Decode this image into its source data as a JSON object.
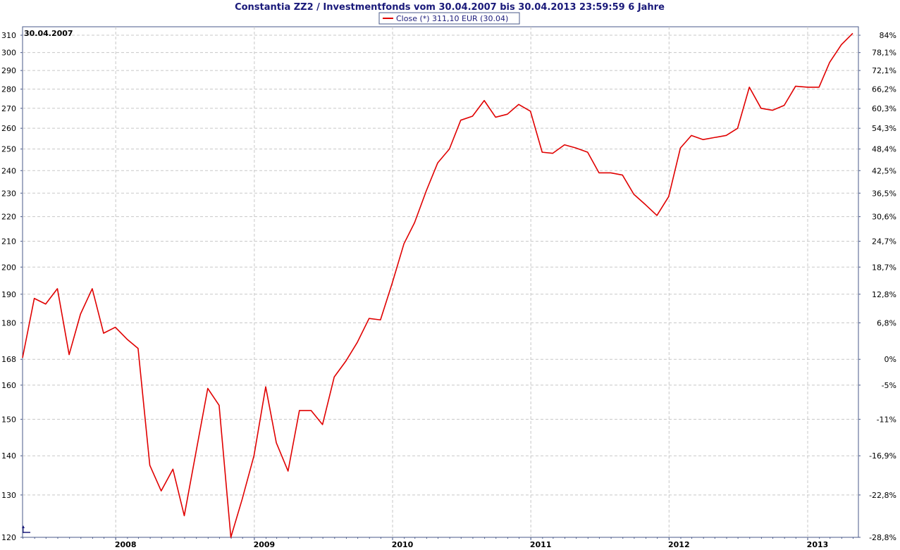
{
  "chart_data": {
    "type": "line",
    "title": "Constantia ZZ2 / Investmentfonds vom 30.04.2007 bis 30.04.2013 23:59:59 6 Jahre",
    "start_label": "30.04.2007",
    "legend": {
      "label": "Close (*) 311,10 EUR (30.04)",
      "placement": "top-center"
    },
    "x_axis": {
      "type": "date",
      "range": [
        "2007-04-30",
        "2013-05-15"
      ],
      "year_labels": [
        {
          "label": "2008",
          "date": "2008-01-01"
        },
        {
          "label": "2009",
          "date": "2009-01-01"
        },
        {
          "label": "2010",
          "date": "2010-01-01"
        },
        {
          "label": "2011",
          "date": "2011-01-01"
        },
        {
          "label": "2012",
          "date": "2012-01-01"
        },
        {
          "label": "2013",
          "date": "2013-01-01"
        }
      ]
    },
    "y_axis_left": {
      "scale": "log",
      "range": [
        120,
        315
      ],
      "ticks": [
        {
          "value": 310,
          "label": "310"
        },
        {
          "value": 300,
          "label": "300"
        },
        {
          "value": 290,
          "label": "290"
        },
        {
          "value": 280,
          "label": "280"
        },
        {
          "value": 270,
          "label": "270"
        },
        {
          "value": 260,
          "label": "260"
        },
        {
          "value": 250,
          "label": "250"
        },
        {
          "value": 240,
          "label": "240"
        },
        {
          "value": 230,
          "label": "230"
        },
        {
          "value": 220,
          "label": "220"
        },
        {
          "value": 210,
          "label": "210"
        },
        {
          "value": 200,
          "label": "200"
        },
        {
          "value": 190,
          "label": "190"
        },
        {
          "value": 180,
          "label": "180"
        },
        {
          "value": 168,
          "label": "168"
        },
        {
          "value": 160,
          "label": "160"
        },
        {
          "value": 150,
          "label": "150"
        },
        {
          "value": 140,
          "label": "140"
        },
        {
          "value": 130,
          "label": "130"
        },
        {
          "value": 120,
          "label": "120"
        }
      ]
    },
    "y_axis_right": {
      "ticks": [
        {
          "value": 310,
          "label": "84%"
        },
        {
          "value": 300,
          "label": "78,1%"
        },
        {
          "value": 290,
          "label": "72,1%"
        },
        {
          "value": 280,
          "label": "66,2%"
        },
        {
          "value": 270,
          "label": "60,3%"
        },
        {
          "value": 260,
          "label": "54,3%"
        },
        {
          "value": 250,
          "label": "48,4%"
        },
        {
          "value": 240,
          "label": "42,5%"
        },
        {
          "value": 230,
          "label": "36,5%"
        },
        {
          "value": 220,
          "label": "30,6%"
        },
        {
          "value": 210,
          "label": "24,7%"
        },
        {
          "value": 200,
          "label": "18,7%"
        },
        {
          "value": 190,
          "label": "12,8%"
        },
        {
          "value": 180,
          "label": "6,8%"
        },
        {
          "value": 168,
          "label": "0%"
        },
        {
          "value": 160,
          "label": "-5%"
        },
        {
          "value": 150,
          "label": "-11%"
        },
        {
          "value": 140,
          "label": "-16,9%"
        },
        {
          "value": 130,
          "label": "-22,8%"
        },
        {
          "value": 120,
          "label": "-28,8%"
        }
      ]
    },
    "grid": true,
    "colors": {
      "line": "#e00000",
      "title": "#1a1a7a",
      "axis": "#4a5a8a",
      "grid": "#c8c8c8"
    },
    "series": [
      {
        "values": [
          {
            "x": "2007-04-30",
            "y": 168.5
          },
          {
            "x": "2007-05-31",
            "y": 188.5
          },
          {
            "x": "2007-06-30",
            "y": 186.5
          },
          {
            "x": "2007-07-31",
            "y": 192.0
          },
          {
            "x": "2007-08-31",
            "y": 169.5
          },
          {
            "x": "2007-09-30",
            "y": 183.0
          },
          {
            "x": "2007-10-31",
            "y": 192.0
          },
          {
            "x": "2007-11-30",
            "y": 176.5
          },
          {
            "x": "2007-12-31",
            "y": 178.5
          },
          {
            "x": "2008-01-31",
            "y": 174.5
          },
          {
            "x": "2008-02-29",
            "y": 171.5
          },
          {
            "x": "2008-03-31",
            "y": 137.5
          },
          {
            "x": "2008-04-30",
            "y": 131.0
          },
          {
            "x": "2008-05-31",
            "y": 136.5
          },
          {
            "x": "2008-06-30",
            "y": 125.0
          },
          {
            "x": "2008-07-31",
            "y": 141.0
          },
          {
            "x": "2008-08-31",
            "y": 159.0
          },
          {
            "x": "2008-09-30",
            "y": 154.0
          },
          {
            "x": "2008-10-31",
            "y": 120.0
          },
          {
            "x": "2008-11-30",
            "y": 129.0
          },
          {
            "x": "2008-12-31",
            "y": 140.0
          },
          {
            "x": "2009-01-31",
            "y": 159.5
          },
          {
            "x": "2009-02-28",
            "y": 143.5
          },
          {
            "x": "2009-03-31",
            "y": 136.0
          },
          {
            "x": "2009-04-30",
            "y": 152.5
          },
          {
            "x": "2009-05-31",
            "y": 152.5
          },
          {
            "x": "2009-06-30",
            "y": 148.5
          },
          {
            "x": "2009-07-31",
            "y": 162.5
          },
          {
            "x": "2009-08-31",
            "y": 167.5
          },
          {
            "x": "2009-09-30",
            "y": 173.5
          },
          {
            "x": "2009-10-31",
            "y": 181.5
          },
          {
            "x": "2009-11-30",
            "y": 181.0
          },
          {
            "x": "2009-12-31",
            "y": 194.0
          },
          {
            "x": "2010-01-31",
            "y": 209.0
          },
          {
            "x": "2010-02-28",
            "y": 217.5
          },
          {
            "x": "2010-03-31",
            "y": 231.0
          },
          {
            "x": "2010-04-30",
            "y": 243.5
          },
          {
            "x": "2010-05-31",
            "y": 250.0
          },
          {
            "x": "2010-06-30",
            "y": 264.0
          },
          {
            "x": "2010-07-31",
            "y": 266.0
          },
          {
            "x": "2010-08-31",
            "y": 274.0
          },
          {
            "x": "2010-09-30",
            "y": 265.5
          },
          {
            "x": "2010-10-31",
            "y": 267.0
          },
          {
            "x": "2010-11-30",
            "y": 272.0
          },
          {
            "x": "2010-12-31",
            "y": 268.5
          },
          {
            "x": "2011-01-31",
            "y": 248.5
          },
          {
            "x": "2011-02-28",
            "y": 248.0
          },
          {
            "x": "2011-03-31",
            "y": 252.0
          },
          {
            "x": "2011-04-30",
            "y": 250.5
          },
          {
            "x": "2011-05-31",
            "y": 248.5
          },
          {
            "x": "2011-06-30",
            "y": 239.0
          },
          {
            "x": "2011-07-31",
            "y": 239.0
          },
          {
            "x": "2011-08-31",
            "y": 238.0
          },
          {
            "x": "2011-09-30",
            "y": 229.5
          },
          {
            "x": "2011-10-31",
            "y": 225.0
          },
          {
            "x": "2011-11-30",
            "y": 220.5
          },
          {
            "x": "2011-12-31",
            "y": 228.5
          },
          {
            "x": "2012-01-31",
            "y": 250.5
          },
          {
            "x": "2012-02-29",
            "y": 256.5
          },
          {
            "x": "2012-03-31",
            "y": 254.5
          },
          {
            "x": "2012-04-30",
            "y": 255.5
          },
          {
            "x": "2012-05-31",
            "y": 256.5
          },
          {
            "x": "2012-06-30",
            "y": 260.0
          },
          {
            "x": "2012-07-31",
            "y": 281.0
          },
          {
            "x": "2012-08-31",
            "y": 270.0
          },
          {
            "x": "2012-09-30",
            "y": 269.0
          },
          {
            "x": "2012-10-31",
            "y": 271.5
          },
          {
            "x": "2012-11-30",
            "y": 281.5
          },
          {
            "x": "2012-12-31",
            "y": 281.0
          },
          {
            "x": "2013-01-31",
            "y": 281.0
          },
          {
            "x": "2013-02-28",
            "y": 294.5
          },
          {
            "x": "2013-03-31",
            "y": 304.5
          },
          {
            "x": "2013-04-30",
            "y": 311.1
          }
        ]
      }
    ]
  }
}
